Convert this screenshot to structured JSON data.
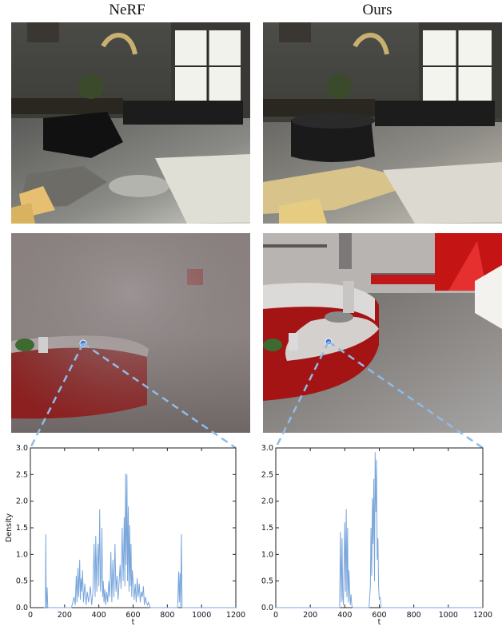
{
  "columns": [
    {
      "title": "NeRF"
    },
    {
      "title": "Ours"
    }
  ],
  "chart_data": [
    {
      "type": "line",
      "method": "NeRF",
      "xlabel": "t",
      "ylabel": "Density",
      "xlim": [
        0,
        1200
      ],
      "ylim": [
        0,
        3.0
      ],
      "xticks": [
        "0",
        "200",
        "400",
        "600",
        "800",
        "1000",
        "1200"
      ],
      "yticks": [
        "0.0",
        "0.5",
        "1.0",
        "1.5",
        "2.0",
        "2.5",
        "3.0"
      ],
      "color": "#7aa6dc",
      "series": [
        {
          "x": [
            80,
            88,
            90,
            92,
            95,
            98,
            102,
            110,
            240,
            255,
            262,
            268,
            272,
            278,
            282,
            288,
            292,
            296,
            300,
            305,
            310,
            318,
            325,
            332,
            340,
            350,
            358,
            365,
            372,
            378,
            382,
            388,
            392,
            396,
            400,
            405,
            410,
            414,
            418,
            422,
            426,
            430,
            435,
            440,
            446,
            452,
            458,
            464,
            470,
            476,
            482,
            488,
            494,
            500,
            506,
            512,
            518,
            524,
            530,
            536,
            542,
            548,
            552,
            556,
            560,
            564,
            568,
            572,
            576,
            580,
            584,
            588,
            592,
            596,
            600,
            606,
            612,
            618,
            624,
            630,
            636,
            642,
            648,
            654,
            660,
            666,
            672,
            678,
            684,
            690,
            700,
            720,
            860,
            866,
            870,
            874,
            878,
            882,
            886,
            890,
            900,
            1200
          ],
          "y": [
            0.0,
            0.0,
            1.38,
            0.3,
            0.0,
            0.38,
            0.0,
            0.0,
            0.0,
            0.2,
            0.05,
            0.6,
            0.1,
            0.75,
            0.2,
            0.9,
            0.15,
            0.55,
            0.3,
            0.7,
            0.1,
            0.45,
            0.05,
            0.3,
            0.1,
            0.4,
            0.05,
            0.3,
            1.2,
            0.2,
            1.35,
            0.3,
            0.9,
            1.2,
            0.4,
            1.85,
            0.3,
            0.6,
            1.5,
            0.2,
            0.5,
            0.1,
            0.35,
            0.05,
            0.3,
            0.1,
            0.5,
            0.2,
            1.05,
            0.1,
            0.9,
            0.2,
            1.2,
            0.3,
            0.6,
            0.15,
            0.45,
            0.8,
            0.35,
            1.5,
            0.5,
            1.7,
            0.4,
            2.52,
            0.8,
            2.5,
            0.5,
            1.9,
            0.3,
            1.55,
            0.4,
            1.2,
            0.2,
            0.7,
            0.5,
            0.15,
            0.45,
            0.1,
            0.55,
            0.2,
            0.45,
            0.1,
            0.3,
            0.2,
            0.4,
            0.05,
            0.2,
            0.1,
            0.05,
            0.1,
            0.0,
            0.0,
            0.0,
            0.68,
            0.1,
            0.65,
            0.0,
            1.38,
            0.0,
            0.0,
            0.0,
            0.0
          ]
        }
      ]
    },
    {
      "type": "line",
      "method": "Ours",
      "xlabel": "t",
      "ylabel": "",
      "xlim": [
        0,
        1200
      ],
      "ylim": [
        0,
        3.0
      ],
      "xticks": [
        "0",
        "200",
        "400",
        "600",
        "800",
        "1000",
        "1200"
      ],
      "yticks": [
        "0.0",
        "0.5",
        "1.0",
        "1.5",
        "2.0",
        "2.5",
        "3.0"
      ],
      "color": "#7aa6dc",
      "series": [
        {
          "x": [
            0,
            370,
            375,
            380,
            384,
            388,
            392,
            396,
            400,
            404,
            408,
            412,
            416,
            420,
            424,
            428,
            432,
            436,
            440,
            445,
            450,
            540,
            548,
            552,
            556,
            560,
            564,
            568,
            572,
            576,
            580,
            584,
            588,
            592,
            596,
            600,
            604,
            610,
            1200
          ],
          "y": [
            0.0,
            0.0,
            1.42,
            0.1,
            1.3,
            0.2,
            0.05,
            0.85,
            1.6,
            0.3,
            1.85,
            0.2,
            1.5,
            0.1,
            0.7,
            0.3,
            0.05,
            0.25,
            0.05,
            0.0,
            0.0,
            0.0,
            0.4,
            1.5,
            0.6,
            2.05,
            1.2,
            2.42,
            0.5,
            2.92,
            1.8,
            2.78,
            0.9,
            1.3,
            0.4,
            0.15,
            0.2,
            0.0,
            0.0
          ]
        }
      ]
    }
  ]
}
